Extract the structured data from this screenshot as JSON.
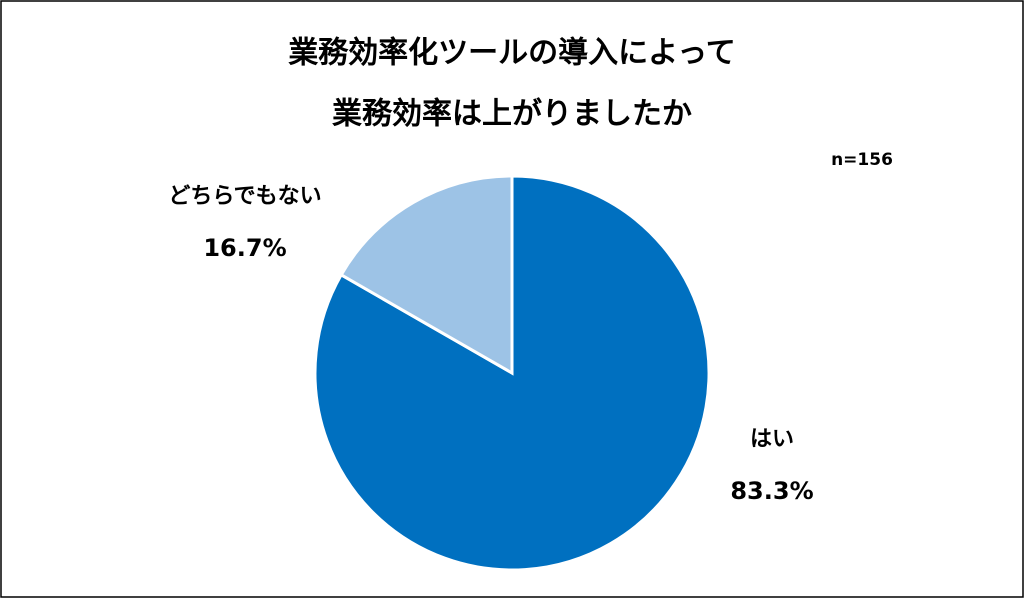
{
  "chart_data": {
    "type": "pie",
    "title": [
      "業務効率化ツールの導入によって",
      "業務効率は上がりましたか"
    ],
    "annotation": "n=156",
    "categories": [
      "はい",
      "どちらでもない"
    ],
    "values": [
      83.3,
      16.7
    ],
    "value_labels": [
      "83.3%",
      "16.7%"
    ],
    "colors": [
      "#0070c0",
      "#9dc3e6"
    ]
  }
}
